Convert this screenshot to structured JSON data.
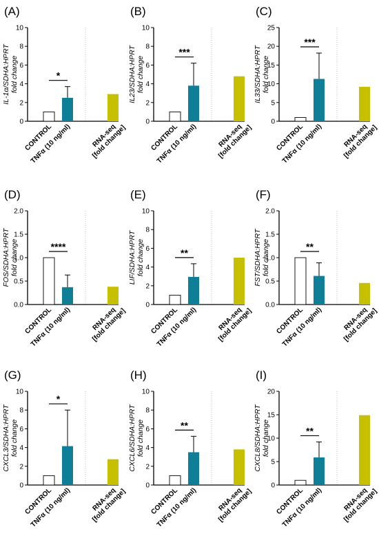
{
  "colors": {
    "control_fill": "#ffffff",
    "tnf_fill": "#0f7f97",
    "rnaseq_fill": "#c6c000",
    "axis": "#000000",
    "divider": "#bdbdbd"
  },
  "chart_data": [
    {
      "type": "bar",
      "panel": "(A)",
      "ylabel_gene": "IL-1α/SDHA:HPRT",
      "ylabel_unit": "fold change",
      "categories": [
        "CONTROL",
        "TNFα (10 ng/ml)",
        "RNA-seq [fold change]"
      ],
      "values": [
        1.0,
        2.5,
        2.9
      ],
      "error_upper": [
        null,
        3.7,
        null
      ],
      "ylim": [
        0,
        10
      ],
      "yticks": [
        0,
        2,
        4,
        6,
        8,
        10
      ],
      "significance": "*"
    },
    {
      "type": "bar",
      "panel": "(B)",
      "ylabel_gene": "IL23/SDHA:HPRT",
      "ylabel_unit": "fold change",
      "categories": [
        "CONTROL",
        "TNFα (10 ng/ml)",
        "RNA-seq [fold change]"
      ],
      "values": [
        1.0,
        3.8,
        4.8
      ],
      "error_upper": [
        null,
        6.2,
        null
      ],
      "ylim": [
        0,
        10
      ],
      "yticks": [
        0,
        2,
        4,
        6,
        8,
        10
      ],
      "significance": "***"
    },
    {
      "type": "bar",
      "panel": "(C)",
      "ylabel_gene": "IL33/SDHA:HPRT",
      "ylabel_unit": "fold change",
      "categories": [
        "CONTROL",
        "TNFα (10 ng/ml)",
        "RNA-seq [fold change]"
      ],
      "values": [
        1.0,
        11.3,
        9.2
      ],
      "error_upper": [
        null,
        18.2,
        null
      ],
      "ylim": [
        0,
        25
      ],
      "yticks": [
        0,
        5,
        10,
        15,
        20,
        25
      ],
      "significance": "***"
    },
    {
      "type": "bar",
      "panel": "(D)",
      "ylabel_gene": "FOS/SDHA:HPRT",
      "ylabel_unit": "fold change",
      "categories": [
        "CONTROL",
        "TNFα (10 ng/ml)",
        "RNA-seq [fold change]"
      ],
      "values": [
        1.0,
        0.37,
        0.38
      ],
      "error_upper": [
        null,
        0.63,
        null
      ],
      "ylim": [
        0,
        2.0
      ],
      "yticks": [
        0,
        0.5,
        1.0,
        1.5,
        2.0
      ],
      "ytick_labels": [
        "0.0",
        "0.5",
        "1.0",
        "1.5",
        "2.0"
      ],
      "significance": "****"
    },
    {
      "type": "bar",
      "panel": "(E)",
      "ylabel_gene": "LIF/SDHA:HPRT",
      "ylabel_unit": "fold change",
      "categories": [
        "CONTROL",
        "TNFα (10 ng/ml)",
        "RNA-seq [fold change]"
      ],
      "values": [
        1.0,
        2.95,
        5.0
      ],
      "error_upper": [
        null,
        4.35,
        null
      ],
      "ylim": [
        0,
        10
      ],
      "yticks": [
        0,
        2,
        4,
        6,
        8,
        10
      ],
      "significance": "**"
    },
    {
      "type": "bar",
      "panel": "(F)",
      "ylabel_gene": "FST/SDHA:HPRT",
      "ylabel_unit": "fold change",
      "categories": [
        "CONTROL",
        "TNFα (10 ng/ml)",
        "RNA-seq [fold change]"
      ],
      "values": [
        1.0,
        0.61,
        0.46
      ],
      "error_upper": [
        null,
        0.89,
        null
      ],
      "ylim": [
        0,
        2.0
      ],
      "yticks": [
        0,
        0.5,
        1.0,
        1.5,
        2.0
      ],
      "ytick_labels": [
        "0.0",
        "0.5",
        "1.0",
        "1.5",
        "2.0"
      ],
      "significance": "**"
    },
    {
      "type": "bar",
      "panel": "(G)",
      "ylabel_gene": "CXCL3/SDHA:HPRT",
      "ylabel_unit": "fold change",
      "categories": [
        "CONTROL",
        "TNFα (10 ng/ml)",
        "RNA-seq [fold change]"
      ],
      "values": [
        1.0,
        4.15,
        2.75
      ],
      "error_upper": [
        null,
        8.0,
        null
      ],
      "ylim": [
        0,
        10
      ],
      "yticks": [
        0,
        2,
        4,
        6,
        8,
        10
      ],
      "significance": "*"
    },
    {
      "type": "bar",
      "panel": "(H)",
      "ylabel_gene": "CXCL6/SDHA:HPRT",
      "ylabel_unit": "fold change",
      "categories": [
        "CONTROL",
        "TNFα (10 ng/ml)",
        "RNA-seq [fold change]"
      ],
      "values": [
        1.0,
        3.5,
        3.8
      ],
      "error_upper": [
        null,
        5.2,
        null
      ],
      "ylim": [
        0,
        10
      ],
      "yticks": [
        0,
        2,
        4,
        6,
        8,
        10
      ],
      "significance": "**"
    },
    {
      "type": "bar",
      "panel": "(I)",
      "ylabel_gene": "CXCL8/SDHA:HPRT",
      "ylabel_unit": "fold change",
      "categories": [
        "CONTROL",
        "TNFα (10 ng/ml)",
        "RNA-seq [fold change]"
      ],
      "values": [
        1.0,
        5.9,
        14.9
      ],
      "error_upper": [
        null,
        9.2,
        null
      ],
      "ylim": [
        0,
        20
      ],
      "yticks": [
        0,
        5,
        10,
        15,
        20
      ],
      "significance": "**"
    }
  ]
}
